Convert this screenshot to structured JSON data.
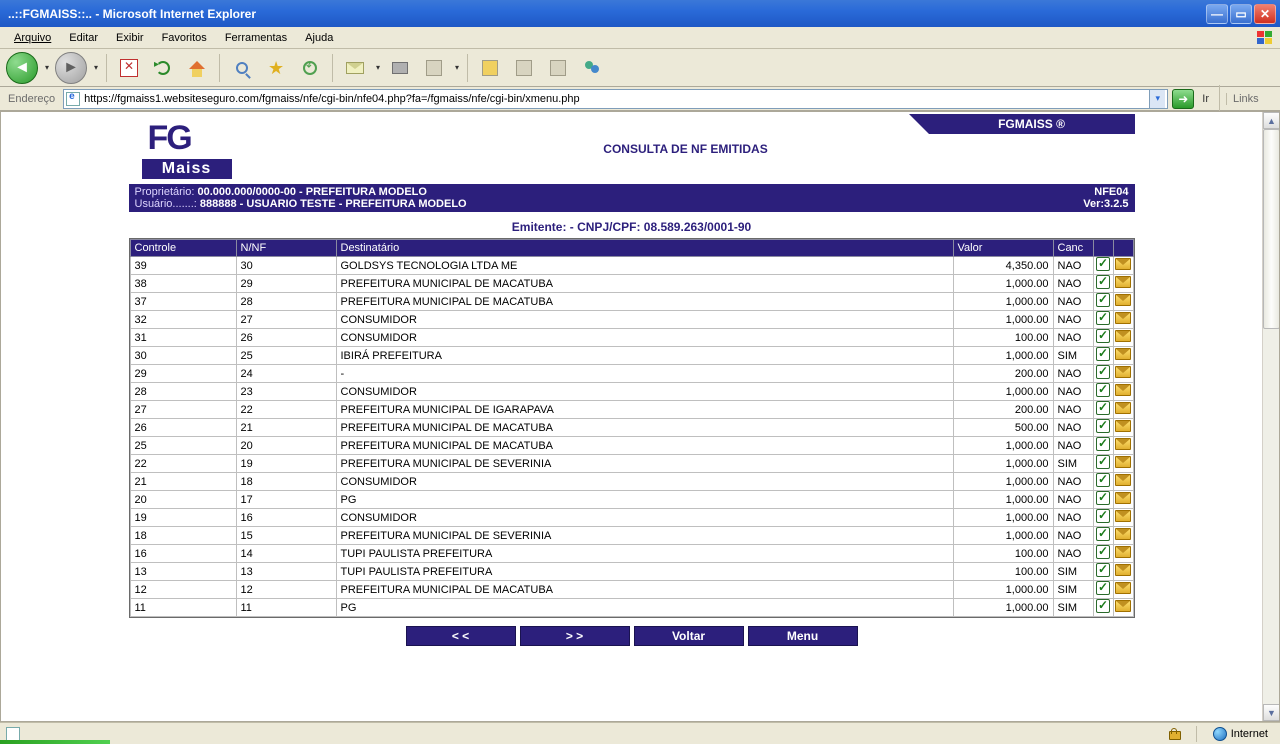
{
  "window": {
    "title": "..::FGMAISS::.. - Microsoft Internet Explorer"
  },
  "menu": {
    "items": [
      "Arquivo",
      "Editar",
      "Exibir",
      "Favoritos",
      "Ferramentas",
      "Ajuda"
    ]
  },
  "address": {
    "label": "Endereço",
    "url": "https://fgmaiss1.websiteseguro.com/fgmaiss/nfe/cgi-bin/nfe04.php?fa=/fgmaiss/nfe/cgi-bin/xmenu.php",
    "go_label": "Ir",
    "links_label": "Links"
  },
  "header": {
    "logo_main": "FG",
    "logo_sub": "Maiss",
    "page_title": "CONSULTA DE NF EMITIDAS",
    "brand_tag": "FGMAISS ®"
  },
  "infoband": {
    "prop_label": "Proprietário:",
    "prop_value": "00.000.000/0000-00 - PREFEITURA MODELO",
    "user_label": "Usuário.......:",
    "user_value": "888888 - USUARIO TESTE - PREFEITURA MODELO",
    "code": "NFE04",
    "version": "Ver:3.2.5"
  },
  "emitente": {
    "label": "Emitente: - CNPJ/CPF: 08.589.263/0001-90"
  },
  "table": {
    "columns": [
      "Controle",
      "N/NF",
      "Destinatário",
      "Valor",
      "Canc",
      "",
      ""
    ],
    "col_widths": [
      "106px",
      "100px",
      "358px",
      "100px",
      "40px",
      "20px",
      "20px"
    ],
    "rows": [
      {
        "controle": "39",
        "nnf": "30",
        "dest": "GOLDSYS TECNOLOGIA LTDA ME",
        "valor": "4,350.00",
        "canc": "NAO"
      },
      {
        "controle": "38",
        "nnf": "29",
        "dest": "PREFEITURA MUNICIPAL DE MACATUBA",
        "valor": "1,000.00",
        "canc": "NAO"
      },
      {
        "controle": "37",
        "nnf": "28",
        "dest": "PREFEITURA MUNICIPAL DE MACATUBA",
        "valor": "1,000.00",
        "canc": "NAO"
      },
      {
        "controle": "32",
        "nnf": "27",
        "dest": "CONSUMIDOR",
        "valor": "1,000.00",
        "canc": "NAO"
      },
      {
        "controle": "31",
        "nnf": "26",
        "dest": "CONSUMIDOR",
        "valor": "100.00",
        "canc": "NAO"
      },
      {
        "controle": "30",
        "nnf": "25",
        "dest": "IBIRÁ PREFEITURA",
        "valor": "1,000.00",
        "canc": "SIM"
      },
      {
        "controle": "29",
        "nnf": "24",
        "dest": "-",
        "valor": "200.00",
        "canc": "NAO"
      },
      {
        "controle": "28",
        "nnf": "23",
        "dest": "CONSUMIDOR",
        "valor": "1,000.00",
        "canc": "NAO"
      },
      {
        "controle": "27",
        "nnf": "22",
        "dest": "PREFEITURA MUNICIPAL DE IGARAPAVA",
        "valor": "200.00",
        "canc": "NAO"
      },
      {
        "controle": "26",
        "nnf": "21",
        "dest": "PREFEITURA MUNICIPAL DE MACATUBA",
        "valor": "500.00",
        "canc": "NAO"
      },
      {
        "controle": "25",
        "nnf": "20",
        "dest": "PREFEITURA MUNICIPAL DE MACATUBA",
        "valor": "1,000.00",
        "canc": "NAO"
      },
      {
        "controle": "22",
        "nnf": "19",
        "dest": "PREFEITURA MUNICIPAL DE SEVERINIA",
        "valor": "1,000.00",
        "canc": "SIM"
      },
      {
        "controle": "21",
        "nnf": "18",
        "dest": "CONSUMIDOR",
        "valor": "1,000.00",
        "canc": "NAO"
      },
      {
        "controle": "20",
        "nnf": "17",
        "dest": "PG",
        "valor": "1,000.00",
        "canc": "NAO"
      },
      {
        "controle": "19",
        "nnf": "16",
        "dest": "CONSUMIDOR",
        "valor": "1,000.00",
        "canc": "NAO"
      },
      {
        "controle": "18",
        "nnf": "15",
        "dest": "PREFEITURA MUNICIPAL DE SEVERINIA",
        "valor": "1,000.00",
        "canc": "NAO"
      },
      {
        "controle": "16",
        "nnf": "14",
        "dest": "TUPI PAULISTA PREFEITURA",
        "valor": "100.00",
        "canc": "NAO"
      },
      {
        "controle": "13",
        "nnf": "13",
        "dest": "TUPI PAULISTA PREFEITURA",
        "valor": "100.00",
        "canc": "SIM"
      },
      {
        "controle": "12",
        "nnf": "12",
        "dest": "PREFEITURA MUNICIPAL DE MACATUBA",
        "valor": "1,000.00",
        "canc": "SIM"
      },
      {
        "controle": "11",
        "nnf": "11",
        "dest": "PG",
        "valor": "1,000.00",
        "canc": "SIM"
      }
    ]
  },
  "pager": {
    "prev": "< <",
    "next": "> >",
    "back": "Voltar",
    "menu": "Menu"
  },
  "status": {
    "zone": "Internet"
  },
  "colors": {
    "primary": "#2c1f7c",
    "titlebar": "#2a6ad8"
  }
}
